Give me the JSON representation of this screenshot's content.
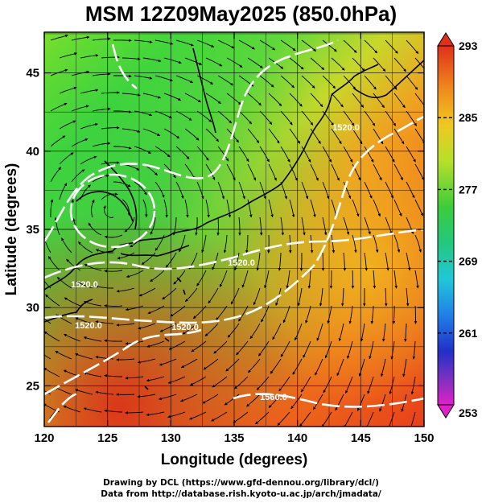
{
  "title": "MSM 12Z09May2025 (850.0hPa)",
  "x_axis": {
    "label": "Longitude (degrees)",
    "ticks": [
      "120",
      "125",
      "130",
      "135",
      "140",
      "145",
      "150"
    ],
    "range": [
      120,
      150
    ]
  },
  "y_axis": {
    "label": "Latitude (degrees)",
    "ticks": [
      "25",
      "30",
      "35",
      "40",
      "45"
    ],
    "range": [
      22.4,
      47.6
    ]
  },
  "colorbar": {
    "ticks": [
      "293",
      "285",
      "277",
      "269",
      "261",
      "253"
    ],
    "range": [
      253,
      293
    ]
  },
  "contours": {
    "labels": [
      "1520.0",
      "1520.0",
      "1520.0",
      "1560.0",
      "1520.0",
      "1520.0"
    ]
  },
  "credits": {
    "line1": "Drawing by DCL (https://www.gfd-dennou.org/library/dcl/)",
    "line2": "Data from http://database.rish.kyoto-u.ac.jp/arch/jmadata/"
  }
}
